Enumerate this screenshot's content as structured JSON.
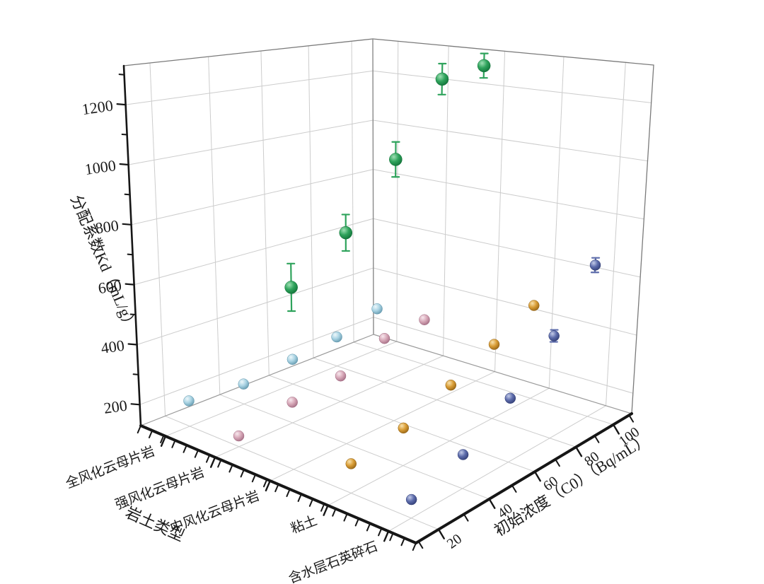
{
  "chart_data": {
    "type": "scatter",
    "subtype": "3d-scatter",
    "title": "",
    "background_color": "#ffffff",
    "grid_color": "#cccccc",
    "frame_color": "#7a7a7a",
    "axis_color": "#161616",
    "text_color": "#1a1a1a",
    "grid": true,
    "legend_position": "none",
    "x_axis": {
      "title": "岩土类型",
      "categories": [
        "全风化云母片岩",
        "强风化云母片岩",
        "中风化云母片岩",
        "粘土",
        "含水层石英碎石"
      ]
    },
    "y_axis": {
      "title": "初始浓度（C0）（Bq/mL）",
      "ticks": [
        20,
        40,
        60,
        80,
        100
      ],
      "range": [
        10,
        105
      ]
    },
    "z_axis": {
      "title": "分配系数Kd（mL/g）",
      "ticks": [
        200,
        400,
        600,
        800,
        1000,
        1200
      ],
      "range": [
        130,
        1330
      ],
      "minor_step": 100
    },
    "series": [
      {
        "name": "全风化云母片岩",
        "marker": "sphere",
        "color": "#a9d3e3",
        "color_light": "#eef8fb",
        "color_dark": "#5d93a9",
        "c0": [
          20,
          40,
          60,
          80,
          100
        ],
        "kd": [
          215,
          200,
          220,
          240,
          290
        ],
        "kd_err": [
          0,
          0,
          0,
          0,
          0
        ]
      },
      {
        "name": "强风化云母片岩",
        "marker": "sphere",
        "color": "#d7a8b8",
        "color_light": "#f8e8ee",
        "color_dark": "#a06880",
        "c0": [
          20,
          40,
          60,
          80,
          100
        ],
        "kd": [
          165,
          200,
          220,
          290,
          300
        ],
        "kd_err": [
          0,
          0,
          0,
          0,
          0
        ]
      },
      {
        "name": "中风化云母片岩",
        "marker": "sphere",
        "color": "#2fa35c",
        "color_light": "#9fe0b4",
        "color_dark": "#0e6e35",
        "c0": [
          20,
          40,
          60,
          80,
          100
        ],
        "kd": [
          705,
          825,
          1025,
          1270,
          1290
        ],
        "kd_err": [
          75,
          60,
          60,
          55,
          45
        ]
      },
      {
        "name": "粘土",
        "marker": "sphere",
        "color": "#d99d36",
        "color_light": "#f8e2ae",
        "color_dark": "#8f5f13",
        "c0": [
          20,
          40,
          60,
          80,
          100
        ],
        "kd": [
          220,
          250,
          315,
          385,
          460
        ],
        "kd_err": [
          0,
          0,
          0,
          0,
          0
        ]
      },
      {
        "name": "含水层石英碎石",
        "marker": "sphere",
        "color": "#5d6cab",
        "color_light": "#c3cbe8",
        "color_dark": "#2f3b72",
        "c0": [
          20,
          40,
          60,
          80,
          100
        ],
        "kd": [
          185,
          235,
          335,
          470,
          650
        ],
        "kd_err": [
          0,
          0,
          0,
          20,
          25
        ]
      }
    ]
  }
}
